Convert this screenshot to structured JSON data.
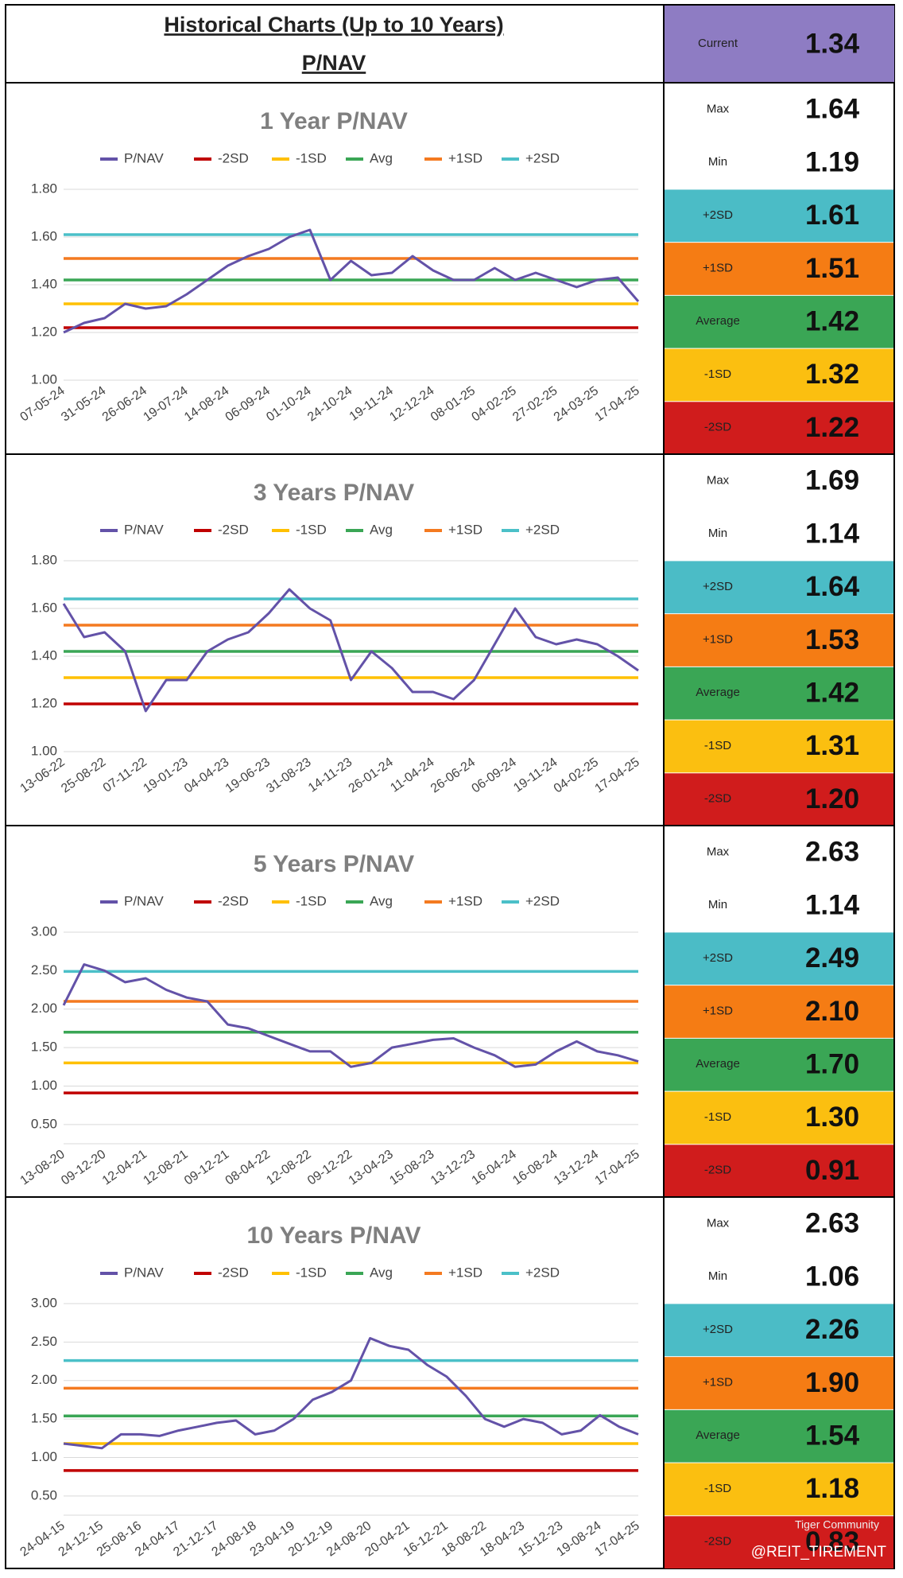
{
  "header": {
    "title": "Historical Charts (Up to 10 Years)",
    "subtitle": "P/NAV"
  },
  "current": {
    "label": "Current",
    "value": "1.34",
    "color": "#8e7cc3"
  },
  "watermark": {
    "brand": "Tiger Community",
    "handle": "@REIT_TIREMENT"
  },
  "chart_data": [
    {
      "type": "line",
      "title": "1 Year P/NAV",
      "categories": [
        "07-05-24",
        null,
        "31-05-24",
        null,
        "26-06-24",
        null,
        "19-07-24",
        null,
        "14-08-24",
        null,
        "06-09-24",
        null,
        "01-10-24",
        null,
        "24-10-24",
        null,
        "19-11-24",
        null,
        "12-12-24",
        null,
        "08-01-25",
        null,
        "04-02-25",
        null,
        "27-02-25",
        null,
        "24-03-25",
        null,
        "17-04-25"
      ],
      "series": [
        {
          "name": "P/NAV",
          "color": "#6352a8",
          "values": [
            1.2,
            1.24,
            1.26,
            1.32,
            1.3,
            1.31,
            1.36,
            1.42,
            1.48,
            1.52,
            1.55,
            1.6,
            1.63,
            1.42,
            1.5,
            1.44,
            1.45,
            1.52,
            1.46,
            1.42,
            1.42,
            1.47,
            1.42,
            1.45,
            1.42,
            1.39,
            1.42,
            1.43,
            1.33
          ]
        }
      ],
      "hlines": [
        {
          "name": "-2SD",
          "color": "#c00000",
          "value": 1.22
        },
        {
          "name": "-1SD",
          "color": "#ffc000",
          "value": 1.32
        },
        {
          "name": "Avg",
          "color": "#3aa655",
          "value": 1.42
        },
        {
          "name": "+1SD",
          "color": "#f47a20",
          "value": 1.51
        },
        {
          "name": "+2SD",
          "color": "#4bc0c8",
          "value": 1.61
        }
      ],
      "ylim": [
        1.0,
        1.8
      ],
      "yticks": [
        {
          "value": 1.0,
          "label": "1.00"
        },
        {
          "value": 1.2,
          "label": "1.20"
        },
        {
          "value": 1.4,
          "label": "1.40"
        },
        {
          "value": 1.6,
          "label": "1.60"
        },
        {
          "value": 1.8,
          "label": "1.80"
        }
      ],
      "grid": true
    },
    {
      "type": "line",
      "title": "3 Years P/NAV",
      "categories": [
        "13-06-22",
        null,
        "25-08-22",
        null,
        "07-11-22",
        null,
        "19-01-23",
        null,
        "04-04-23",
        null,
        "19-06-23",
        null,
        "31-08-23",
        null,
        "14-11-23",
        null,
        "26-01-24",
        null,
        "11-04-24",
        null,
        "26-06-24",
        null,
        "06-09-24",
        null,
        "19-11-24",
        null,
        "04-02-25",
        null,
        "17-04-25"
      ],
      "series": [
        {
          "name": "P/NAV",
          "color": "#6352a8",
          "values": [
            1.62,
            1.48,
            1.5,
            1.42,
            1.17,
            1.3,
            1.3,
            1.42,
            1.47,
            1.5,
            1.58,
            1.68,
            1.6,
            1.55,
            1.3,
            1.42,
            1.35,
            1.25,
            1.25,
            1.22,
            1.3,
            1.45,
            1.6,
            1.48,
            1.45,
            1.47,
            1.45,
            1.4,
            1.34
          ]
        }
      ],
      "hlines": [
        {
          "name": "-2SD",
          "color": "#c00000",
          "value": 1.2
        },
        {
          "name": "-1SD",
          "color": "#ffc000",
          "value": 1.31
        },
        {
          "name": "Avg",
          "color": "#3aa655",
          "value": 1.42
        },
        {
          "name": "+1SD",
          "color": "#f47a20",
          "value": 1.53
        },
        {
          "name": "+2SD",
          "color": "#4bc0c8",
          "value": 1.64
        }
      ],
      "ylim": [
        1.0,
        1.8
      ],
      "yticks": [
        {
          "value": 1.0,
          "label": "1.00"
        },
        {
          "value": 1.2,
          "label": "1.20"
        },
        {
          "value": 1.4,
          "label": "1.40"
        },
        {
          "value": 1.6,
          "label": "1.60"
        },
        {
          "value": 1.8,
          "label": "1.80"
        }
      ],
      "grid": true
    },
    {
      "type": "line",
      "title": "5 Years P/NAV",
      "categories": [
        "13-08-20",
        null,
        "09-12-20",
        null,
        "12-04-21",
        null,
        "12-08-21",
        null,
        "09-12-21",
        null,
        "08-04-22",
        null,
        "12-08-22",
        null,
        "09-12-22",
        null,
        "13-04-23",
        null,
        "15-08-23",
        null,
        "13-12-23",
        null,
        "16-04-24",
        null,
        "16-08-24",
        null,
        "13-12-24",
        null,
        "17-04-25"
      ],
      "series": [
        {
          "name": "P/NAV",
          "color": "#6352a8",
          "values": [
            2.05,
            2.58,
            2.5,
            2.35,
            2.4,
            2.25,
            2.15,
            2.1,
            1.8,
            1.75,
            1.65,
            1.55,
            1.45,
            1.45,
            1.25,
            1.3,
            1.5,
            1.55,
            1.6,
            1.62,
            1.5,
            1.4,
            1.25,
            1.28,
            1.45,
            1.58,
            1.45,
            1.4,
            1.32
          ]
        }
      ],
      "hlines": [
        {
          "name": "-2SD",
          "color": "#c00000",
          "value": 0.91
        },
        {
          "name": "-1SD",
          "color": "#ffc000",
          "value": 1.3
        },
        {
          "name": "Avg",
          "color": "#3aa655",
          "value": 1.7
        },
        {
          "name": "+1SD",
          "color": "#f47a20",
          "value": 2.1
        },
        {
          "name": "+2SD",
          "color": "#4bc0c8",
          "value": 2.49
        }
      ],
      "ylim": [
        0.25,
        3.0
      ],
      "yticks": [
        {
          "value": 0.5,
          "label": "0.50"
        },
        {
          "value": 1.0,
          "label": "1.00"
        },
        {
          "value": 1.5,
          "label": "1.50"
        },
        {
          "value": 2.0,
          "label": "2.00"
        },
        {
          "value": 2.5,
          "label": "2.50"
        },
        {
          "value": 3.0,
          "label": "3.00"
        }
      ],
      "grid": true
    },
    {
      "type": "line",
      "title": "10 Years P/NAV",
      "categories": [
        "24-04-15",
        null,
        "24-12-15",
        null,
        "25-08-16",
        null,
        "24-04-17",
        null,
        "21-12-17",
        null,
        "24-08-18",
        null,
        "23-04-19",
        null,
        "20-12-19",
        null,
        "24-08-20",
        null,
        "20-04-21",
        null,
        "16-12-21",
        null,
        "18-08-22",
        null,
        "18-04-23",
        null,
        "15-12-23",
        null,
        "19-08-24",
        null,
        "17-04-25"
      ],
      "series": [
        {
          "name": "P/NAV",
          "color": "#6352a8",
          "values": [
            1.18,
            1.15,
            1.12,
            1.3,
            1.3,
            1.28,
            1.35,
            1.4,
            1.45,
            1.48,
            1.3,
            1.35,
            1.5,
            1.75,
            1.85,
            2.0,
            2.55,
            2.45,
            2.4,
            2.2,
            2.05,
            1.8,
            1.5,
            1.4,
            1.5,
            1.45,
            1.3,
            1.35,
            1.55,
            1.4,
            1.3
          ]
        }
      ],
      "hlines": [
        {
          "name": "-2SD",
          "color": "#c00000",
          "value": 0.83
        },
        {
          "name": "-1SD",
          "color": "#ffc000",
          "value": 1.18
        },
        {
          "name": "Avg",
          "color": "#3aa655",
          "value": 1.54
        },
        {
          "name": "+1SD",
          "color": "#f47a20",
          "value": 1.9
        },
        {
          "name": "+2SD",
          "color": "#4bc0c8",
          "value": 2.26
        }
      ],
      "ylim": [
        0.25,
        3.0
      ],
      "yticks": [
        {
          "value": 0.5,
          "label": "0.50"
        },
        {
          "value": 1.0,
          "label": "1.00"
        },
        {
          "value": 1.5,
          "label": "1.50"
        },
        {
          "value": 2.0,
          "label": "2.00"
        },
        {
          "value": 2.5,
          "label": "2.50"
        },
        {
          "value": 3.0,
          "label": "3.00"
        }
      ],
      "grid": true
    }
  ],
  "stats": [
    {
      "rows": [
        {
          "label": "Max",
          "value": "1.64",
          "color": "#ffffff"
        },
        {
          "label": "Min",
          "value": "1.19",
          "color": "#ffffff"
        },
        {
          "label": "+2SD",
          "value": "1.61",
          "color": "#4bbcc6"
        },
        {
          "label": "+1SD",
          "value": "1.51",
          "color": "#f57c14"
        },
        {
          "label": "Average",
          "value": "1.42",
          "color": "#3aa655"
        },
        {
          "label": "-1SD",
          "value": "1.32",
          "color": "#fbbf10"
        },
        {
          "label": "-2SD",
          "value": "1.22",
          "color": "#d01c1c"
        }
      ]
    },
    {
      "rows": [
        {
          "label": "Max",
          "value": "1.69",
          "color": "#ffffff"
        },
        {
          "label": "Min",
          "value": "1.14",
          "color": "#ffffff"
        },
        {
          "label": "+2SD",
          "value": "1.64",
          "color": "#4bbcc6"
        },
        {
          "label": "+1SD",
          "value": "1.53",
          "color": "#f57c14"
        },
        {
          "label": "Average",
          "value": "1.42",
          "color": "#3aa655"
        },
        {
          "label": "-1SD",
          "value": "1.31",
          "color": "#fbbf10"
        },
        {
          "label": "-2SD",
          "value": "1.20",
          "color": "#d01c1c"
        }
      ]
    },
    {
      "rows": [
        {
          "label": "Max",
          "value": "2.63",
          "color": "#ffffff"
        },
        {
          "label": "Min",
          "value": "1.14",
          "color": "#ffffff"
        },
        {
          "label": "+2SD",
          "value": "2.49",
          "color": "#4bbcc6"
        },
        {
          "label": "+1SD",
          "value": "2.10",
          "color": "#f57c14"
        },
        {
          "label": "Average",
          "value": "1.70",
          "color": "#3aa655"
        },
        {
          "label": "-1SD",
          "value": "1.30",
          "color": "#fbbf10"
        },
        {
          "label": "-2SD",
          "value": "0.91",
          "color": "#d01c1c"
        }
      ]
    },
    {
      "rows": [
        {
          "label": "Max",
          "value": "2.63",
          "color": "#ffffff"
        },
        {
          "label": "Min",
          "value": "1.06",
          "color": "#ffffff"
        },
        {
          "label": "+2SD",
          "value": "2.26",
          "color": "#4bbcc6"
        },
        {
          "label": "+1SD",
          "value": "1.90",
          "color": "#f57c14"
        },
        {
          "label": "Average",
          "value": "1.54",
          "color": "#3aa655"
        },
        {
          "label": "-1SD",
          "value": "1.18",
          "color": "#fbbf10"
        },
        {
          "label": "-2SD",
          "value": "0.83",
          "color": "#d01c1c"
        }
      ]
    }
  ]
}
